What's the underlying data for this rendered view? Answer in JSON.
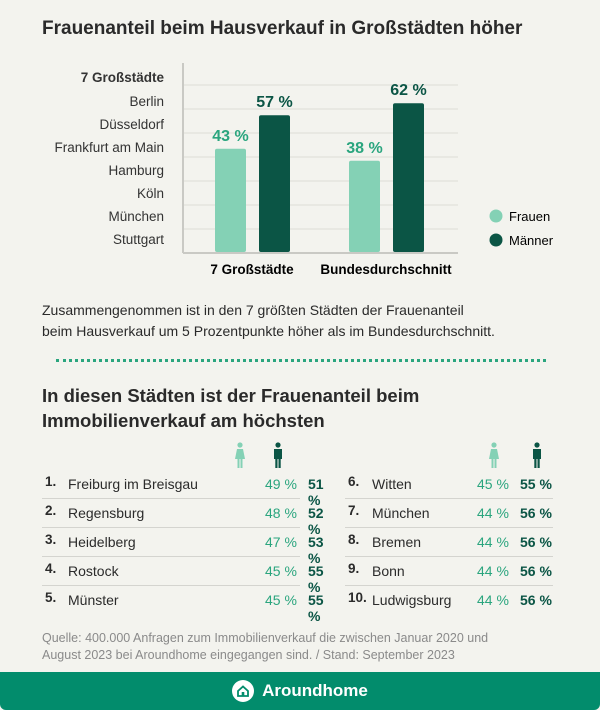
{
  "title": "Frauenanteil beim Hausverkauf in Großstädten höher",
  "city_list": {
    "heading": "7 Großstädte",
    "cities": [
      "Berlin",
      "Düsseldorf",
      "Frankfurt am Main",
      "Hamburg",
      "Köln",
      "München",
      "Stuttgart"
    ]
  },
  "chart_data": {
    "type": "bar",
    "categories": [
      "7 Großstädte",
      "Bundesdurchschnitt"
    ],
    "series": [
      {
        "name": "Frauen",
        "values": [
          43,
          38
        ],
        "labels": [
          "43 %",
          "38 %"
        ],
        "color": "#84d1b5"
      },
      {
        "name": "Männer",
        "values": [
          57,
          62
        ],
        "labels": [
          "57 %",
          "62 %"
        ],
        "color": "#0b5545"
      }
    ],
    "grid": true,
    "legend": "right",
    "unit": "%"
  },
  "summary": [
    "Zusammengenommen ist in den 7 größten Städten der Frauenanteil",
    "beim Hausverkauf um 5 Prozentpunkte höher als im Bundesdurchschnitt."
  ],
  "ranking": {
    "heading": [
      "In diesen Städten ist der Frauenanteil beim",
      "Immobilienverkauf am höchsten"
    ],
    "icons": {
      "women": "woman-icon",
      "men": "man-icon"
    },
    "left": [
      {
        "rank": "1.",
        "city": "Freiburg im Breisgau",
        "women": "49 %",
        "men": "51 %"
      },
      {
        "rank": "2.",
        "city": "Regensburg",
        "women": "48 %",
        "men": "52 %"
      },
      {
        "rank": "3.",
        "city": "Heidelberg",
        "women": "47 %",
        "men": "53 %"
      },
      {
        "rank": "4.",
        "city": "Rostock",
        "women": "45 %",
        "men": "55 %"
      },
      {
        "rank": "5.",
        "city": "Münster",
        "women": "45 %",
        "men": "55 %"
      }
    ],
    "right": [
      {
        "rank": "6.",
        "city": "Witten",
        "women": "45 %",
        "men": "55 %"
      },
      {
        "rank": "7.",
        "city": "München",
        "women": "44 %",
        "men": "56 %"
      },
      {
        "rank": "8.",
        "city": "Bremen",
        "women": "44 %",
        "men": "56 %"
      },
      {
        "rank": "9.",
        "city": "Bonn",
        "women": "44 %",
        "men": "56 %"
      },
      {
        "rank": "10.",
        "city": "Ludwigsburg",
        "women": "44 %",
        "men": "56 %"
      }
    ]
  },
  "source": [
    "Quelle: 400.000 Anfragen zum Immobilienverkauf die zwischen Januar 2020 und",
    "August 2023 bei Aroundhome eingegangen sind.  /  Stand: September 2023"
  ],
  "footer": {
    "brand": "Aroundhome",
    "icon": "house-icon"
  }
}
